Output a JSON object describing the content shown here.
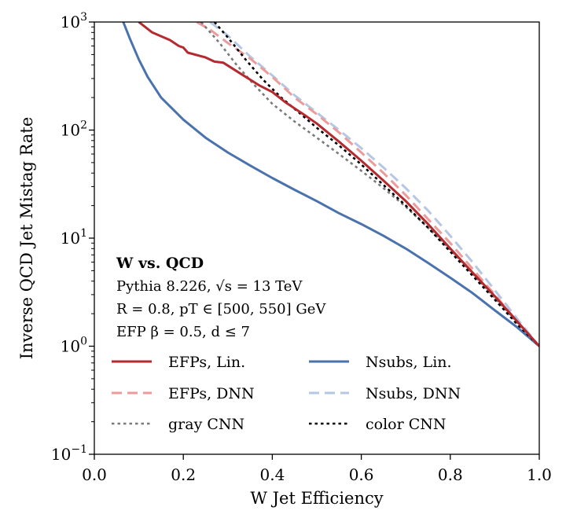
{
  "chart_data": {
    "type": "line",
    "xlabel": "W Jet Efficiency",
    "ylabel": "Inverse QCD Jet Mistag Rate",
    "xlim": [
      0.0,
      1.0
    ],
    "ylim": [
      0.1,
      1000
    ],
    "yscale": "log",
    "x_ticks": [
      {
        "value": 0.0,
        "label": "0.0"
      },
      {
        "value": 0.2,
        "label": "0.2"
      },
      {
        "value": 0.4,
        "label": "0.4"
      },
      {
        "value": 0.6,
        "label": "0.6"
      },
      {
        "value": 0.8,
        "label": "0.8"
      },
      {
        "value": 1.0,
        "label": "1.0"
      }
    ],
    "y_ticks": [
      {
        "value": 0.1,
        "base": "10",
        "exp": "−1"
      },
      {
        "value": 1,
        "base": "10",
        "exp": "0"
      },
      {
        "value": 10,
        "base": "10",
        "exp": "1"
      },
      {
        "value": 100,
        "base": "10",
        "exp": "2"
      },
      {
        "value": 1000,
        "base": "10",
        "exp": "3"
      }
    ],
    "annotation": {
      "title": "W vs. QCD",
      "lines": [
        "Pythia 8.226, √s = 13 TeV",
        "R = 0.8, pT ∈ [500, 550] GeV",
        "EFP β = 0.5, d ≤ 7"
      ]
    },
    "legend_position": "bottom",
    "series": [
      {
        "name": "EFPs, Lin.",
        "color": "#b52a2f",
        "dash": "solid",
        "x": [
          0.1,
          0.13,
          0.17,
          0.19,
          0.2,
          0.21,
          0.25,
          0.27,
          0.29,
          0.33,
          0.37,
          0.4,
          0.43,
          0.47,
          0.5,
          0.55,
          0.6,
          0.65,
          0.7,
          0.75,
          0.8,
          0.85,
          0.9,
          0.95,
          1.0
        ],
        "y": [
          1000,
          800,
          680,
          600,
          580,
          520,
          470,
          430,
          420,
          330,
          260,
          225,
          180,
          140,
          115,
          78,
          52,
          34,
          22,
          13.5,
          8,
          4.8,
          2.9,
          1.7,
          1.0
        ]
      },
      {
        "name": "EFPs, DNN",
        "color": "#ec9a9a",
        "dash": "dashed",
        "x": [
          0.23,
          0.26,
          0.3,
          0.35,
          0.4,
          0.45,
          0.5,
          0.55,
          0.6,
          0.65,
          0.7,
          0.75,
          0.8,
          0.85,
          0.9,
          0.95,
          1.0
        ],
        "y": [
          1000,
          850,
          640,
          460,
          310,
          200,
          140,
          95,
          62,
          40,
          25,
          15,
          9,
          5.2,
          3.0,
          1.7,
          1.0
        ]
      },
      {
        "name": "gray CNN",
        "color": "#7a7a7a",
        "dash": "dotted",
        "x": [
          0.24,
          0.28,
          0.32,
          0.36,
          0.4,
          0.45,
          0.5,
          0.55,
          0.6,
          0.65,
          0.7,
          0.75,
          0.8,
          0.85,
          0.9,
          0.95,
          1.0
        ],
        "y": [
          1000,
          650,
          400,
          260,
          175,
          120,
          85,
          60,
          42,
          29,
          19.5,
          12.5,
          7.8,
          4.7,
          2.8,
          1.65,
          1.0
        ]
      },
      {
        "name": "Nsubs, Lin.",
        "color": "#4a72ad",
        "dash": "solid",
        "x": [
          0.065,
          0.08,
          0.1,
          0.12,
          0.15,
          0.2,
          0.25,
          0.3,
          0.35,
          0.4,
          0.45,
          0.5,
          0.55,
          0.6,
          0.65,
          0.7,
          0.75,
          0.8,
          0.85,
          0.9,
          0.95,
          1.0
        ],
        "y": [
          1000,
          700,
          450,
          310,
          200,
          125,
          85,
          62,
          47,
          36,
          28,
          22,
          17,
          13.5,
          10.5,
          8.0,
          5.9,
          4.3,
          3.1,
          2.15,
          1.5,
          1.0
        ]
      },
      {
        "name": "Nsubs, DNN",
        "color": "#b5c7e2",
        "dash": "dashed",
        "x": [
          0.26,
          0.3,
          0.35,
          0.4,
          0.45,
          0.5,
          0.55,
          0.6,
          0.65,
          0.7,
          0.75,
          0.8,
          0.85,
          0.9,
          0.95,
          1.0
        ],
        "y": [
          1000,
          750,
          480,
          320,
          210,
          145,
          100,
          68,
          45,
          29,
          18,
          10.5,
          6.0,
          3.3,
          1.8,
          1.0
        ]
      },
      {
        "name": "color CNN",
        "color": "#000000",
        "dash": "dotted",
        "x": [
          0.27,
          0.3,
          0.34,
          0.38,
          0.42,
          0.46,
          0.5,
          0.55,
          0.6,
          0.65,
          0.7,
          0.75,
          0.8,
          0.85,
          0.9,
          0.95,
          1.0
        ],
        "y": [
          1000,
          720,
          450,
          290,
          200,
          145,
          105,
          72,
          48,
          31,
          20,
          12.5,
          7.5,
          4.5,
          2.7,
          1.6,
          1.0
        ]
      }
    ]
  }
}
